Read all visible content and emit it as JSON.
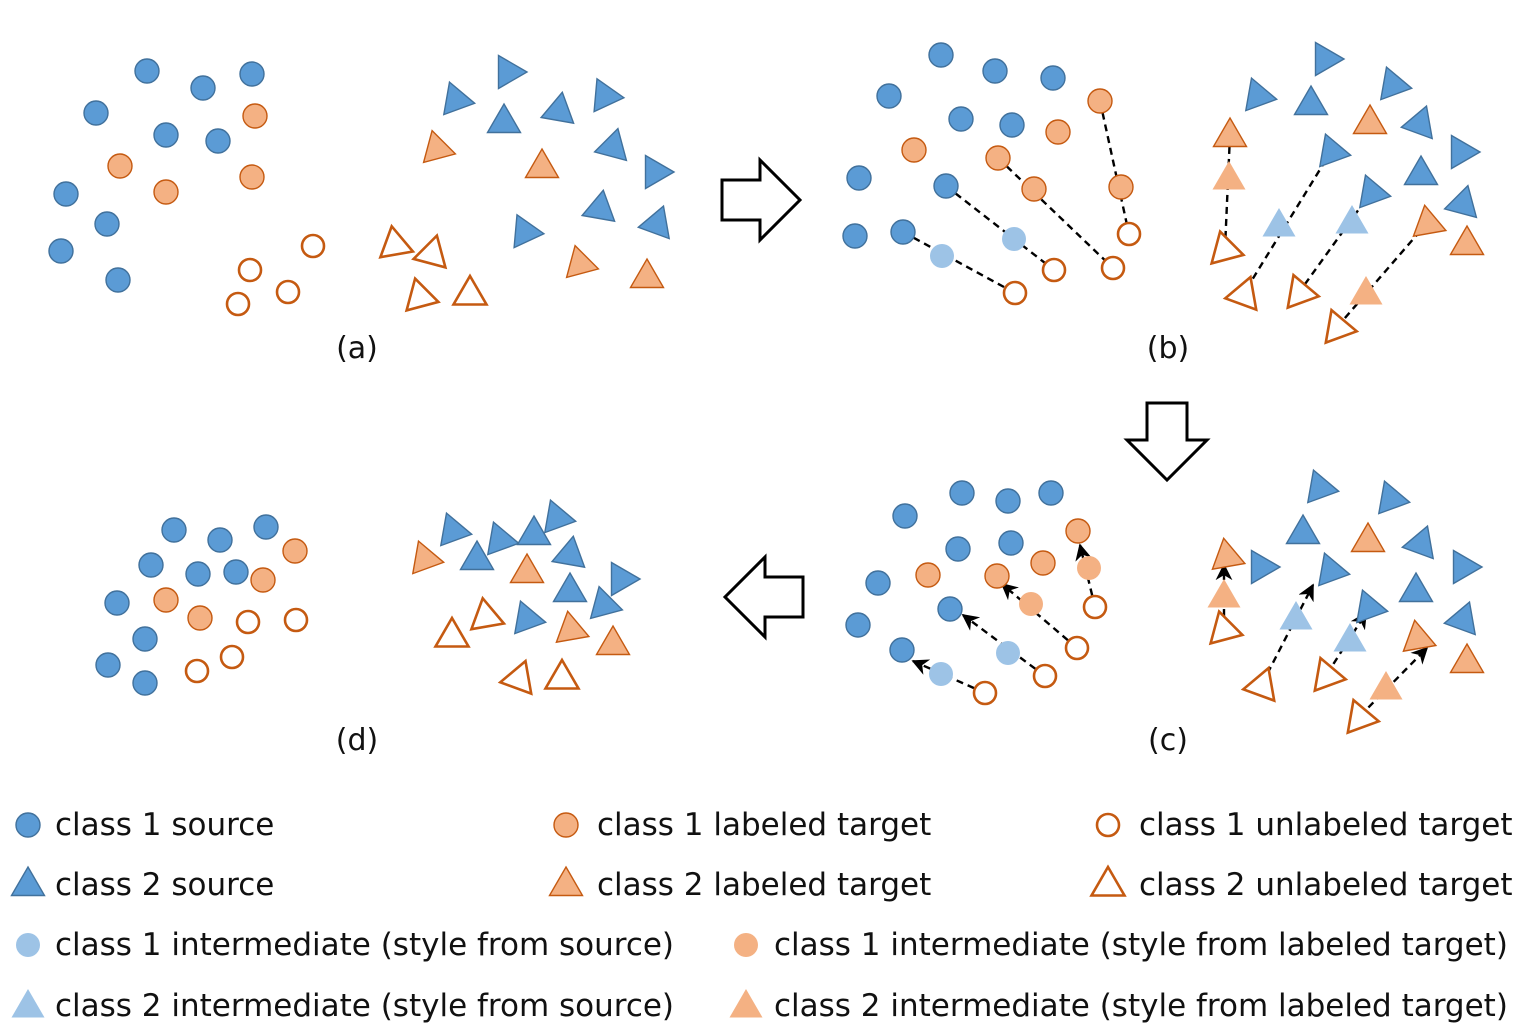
{
  "panels": [
    {
      "label": "(a)"
    },
    {
      "label": "(b)"
    },
    {
      "label": "(c)"
    },
    {
      "label": "(d)"
    }
  ],
  "legend": [
    {
      "marker": "circle-source",
      "label": "class 1 source"
    },
    {
      "marker": "circle-labeled",
      "label": "class 1 labeled target"
    },
    {
      "marker": "circle-unlabeled",
      "label": "class 1 unlabeled target"
    },
    {
      "marker": "triangle-source",
      "label": "class 2 source"
    },
    {
      "marker": "triangle-labeled",
      "label": "class 2 labeled target"
    },
    {
      "marker": "triangle-unlabeled",
      "label": "class 2 unlabeled target"
    },
    {
      "marker": "circle-intermediate-source",
      "label": "class 1 intermediate (style from source)"
    },
    {
      "marker": "circle-intermediate-target",
      "label": "class 1 intermediate (style from labeled target)"
    },
    {
      "marker": "triangle-intermediate-source",
      "label": "class 2 intermediate (style from source)"
    },
    {
      "marker": "triangle-intermediate-target",
      "label": "class 2 intermediate (style from labeled target)"
    }
  ],
  "colors": {
    "source": "#5b9bd5",
    "source_stroke": "#41719c",
    "labeled_target": "#f4b183",
    "labeled_target_stroke": "#c55a11",
    "unlabeled_stroke": "#c55a11",
    "intermediate_source": "#9dc3e6",
    "intermediate_target": "#f8cbad"
  }
}
